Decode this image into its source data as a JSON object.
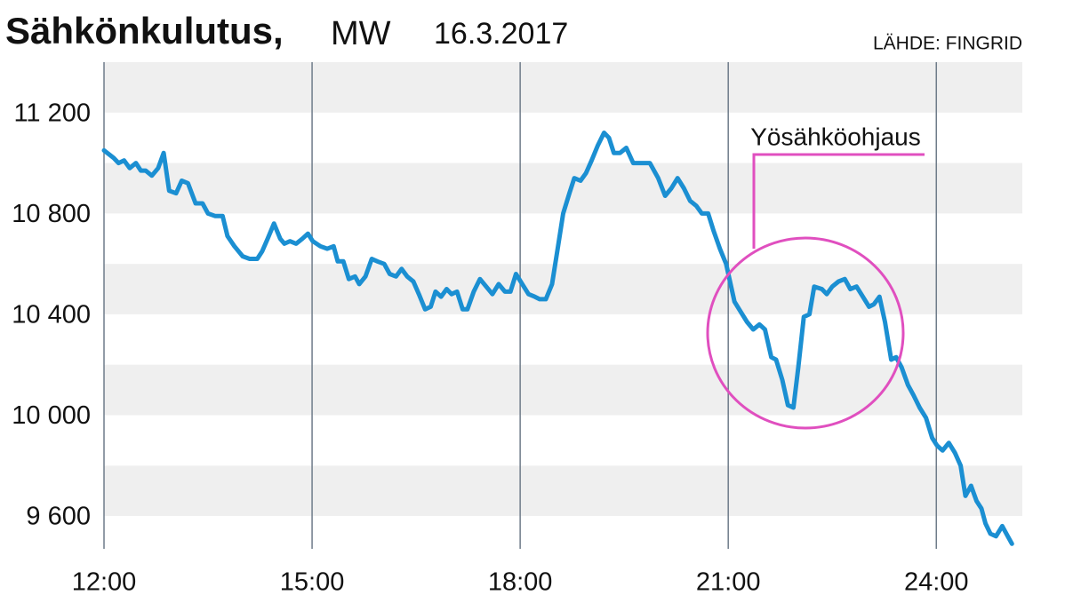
{
  "chart_data": {
    "type": "line",
    "title": "Sähkönkulutus,",
    "unit": "MW",
    "date": "16.3.2017",
    "source": "LÄHDE: FINGRID",
    "annotation": "Yösähköohjaus",
    "xlim": [
      12,
      25.24
    ],
    "ylim": [
      9470,
      11400
    ],
    "xticks": [
      {
        "value": 12,
        "label": "12:00"
      },
      {
        "value": 15,
        "label": "15:00"
      },
      {
        "value": 18,
        "label": "18:00"
      },
      {
        "value": 21,
        "label": "21:00"
      },
      {
        "value": 24,
        "label": "24:00"
      }
    ],
    "yticks": [
      {
        "value": 9600,
        "label": "9 600"
      },
      {
        "value": 10000,
        "label": "10 000"
      },
      {
        "value": 10400,
        "label": "10 400"
      },
      {
        "value": 10800,
        "label": "10 800"
      },
      {
        "value": 11200,
        "label": "11 200"
      }
    ],
    "grid": true,
    "series": [
      {
        "color": "#1b8fd2",
        "x": [
          12,
          12.14,
          12.21,
          12.29,
          12.37,
          12.46,
          12.53,
          12.6,
          12.69,
          12.78,
          12.86,
          12.94,
          13.04,
          13.12,
          13.21,
          13.32,
          13.42,
          13.5,
          13.6,
          13.71,
          13.78,
          13.88,
          14,
          14.1,
          14.21,
          14.28,
          14.36,
          14.45,
          14.54,
          14.6,
          14.68,
          14.77,
          14.86,
          14.94,
          15.01,
          15.12,
          15.22,
          15.31,
          15.37,
          15.45,
          15.53,
          15.62,
          15.68,
          15.77,
          15.86,
          15.94,
          16.04,
          16.12,
          16.21,
          16.29,
          16.37,
          16.46,
          16.54,
          16.63,
          16.71,
          16.78,
          16.86,
          16.94,
          17.01,
          17.09,
          17.17,
          17.24,
          17.33,
          17.42,
          17.51,
          17.6,
          17.69,
          17.78,
          17.86,
          17.94,
          18.03,
          18.12,
          18.21,
          18.28,
          18.37,
          18.46,
          18.54,
          18.62,
          18.71,
          18.78,
          18.87,
          18.95,
          19.03,
          19.12,
          19.21,
          19.28,
          19.35,
          19.44,
          19.53,
          19.63,
          19.73,
          19.87,
          19.99,
          20.09,
          20.18,
          20.27,
          20.36,
          20.45,
          20.54,
          20.62,
          20.71,
          20.79,
          20.88,
          20.97,
          21.09,
          21.18,
          21.27,
          21.36,
          21.45,
          21.53,
          21.62,
          21.69,
          21.78,
          21.86,
          21.94,
          22.01,
          22.09,
          22.17,
          22.24,
          22.35,
          22.42,
          22.5,
          22.59,
          22.68,
          22.76,
          22.85,
          22.94,
          23.03,
          23.1,
          23.18,
          23.26,
          23.35,
          23.42,
          23.5,
          23.59,
          23.67,
          23.76,
          23.85,
          23.94,
          24.01,
          24.09,
          24.18,
          24.27,
          24.35,
          24.42,
          24.5,
          24.58,
          24.65,
          24.71,
          24.78,
          24.86,
          24.95,
          25.03,
          25.09
        ],
        "values": [
          11050,
          11020,
          11000,
          11010,
          10980,
          11000,
          10970,
          10970,
          10950,
          10980,
          11040,
          10890,
          10880,
          10930,
          10920,
          10840,
          10840,
          10800,
          10790,
          10790,
          10710,
          10670,
          10630,
          10620,
          10620,
          10650,
          10700,
          10760,
          10700,
          10680,
          10690,
          10680,
          10700,
          10720,
          10690,
          10670,
          10660,
          10670,
          10610,
          10610,
          10540,
          10550,
          10520,
          10550,
          10620,
          10610,
          10600,
          10560,
          10550,
          10580,
          10550,
          10530,
          10480,
          10420,
          10430,
          10490,
          10470,
          10500,
          10480,
          10490,
          10420,
          10420,
          10490,
          10540,
          10510,
          10480,
          10520,
          10490,
          10490,
          10560,
          10520,
          10480,
          10470,
          10460,
          10460,
          10520,
          10660,
          10800,
          10880,
          10940,
          10930,
          10960,
          11010,
          11070,
          11120,
          11100,
          11040,
          11040,
          11060,
          11000,
          11000,
          11000,
          10940,
          10870,
          10900,
          10940,
          10900,
          10850,
          10830,
          10800,
          10800,
          10730,
          10660,
          10600,
          10450,
          10410,
          10370,
          10340,
          10360,
          10340,
          10230,
          10220,
          10140,
          10040,
          10030,
          10190,
          10390,
          10400,
          10510,
          10500,
          10480,
          10510,
          10530,
          10540,
          10500,
          10510,
          10470,
          10430,
          10440,
          10470,
          10370,
          10220,
          10230,
          10190,
          10120,
          10080,
          10030,
          9990,
          9910,
          9880,
          9860,
          9890,
          9850,
          9800,
          9680,
          9720,
          9660,
          9630,
          9570,
          9530,
          9520,
          9560,
          9520,
          9490
        ]
      }
    ]
  }
}
